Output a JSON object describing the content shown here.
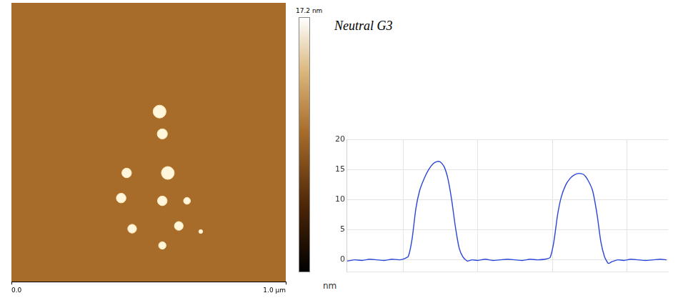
{
  "chart_data": [
    {
      "type": "scatter",
      "x": [
        0.54,
        0.55,
        0.42,
        0.57,
        0.4,
        0.55,
        0.64,
        0.44,
        0.61,
        0.69,
        0.55
      ],
      "values": [
        0.61,
        0.53,
        0.39,
        0.39,
        0.3,
        0.29,
        0.29,
        0.19,
        0.2,
        0.18,
        0.13
      ],
      "diameters": [
        0.047,
        0.037,
        0.035,
        0.047,
        0.035,
        0.035,
        0.025,
        0.032,
        0.032,
        0.014,
        0.027
      ],
      "color": "#fff6dc",
      "xlim": [
        0,
        1
      ],
      "ylim": [
        0,
        1
      ],
      "xticks": [
        {
          "value": 0,
          "label": "0.0"
        },
        {
          "value": 1,
          "label": "1.0 µm"
        }
      ],
      "tick_labels": "x",
      "grid": false,
      "colorbar": {
        "range": [
          0,
          17.2
        ],
        "ticks": [
          {
            "value": 17.2,
            "label": "17.2 nm"
          }
        ]
      }
    },
    {
      "type": "line",
      "title": "Neutral G3",
      "ylabel": "nm",
      "x": [
        0.25,
        0.35,
        0.45,
        0.55,
        0.65,
        0.75,
        0.85,
        0.95,
        1.02,
        1.07,
        1.12,
        1.17,
        1.22,
        1.28,
        1.34,
        1.4,
        1.46,
        1.5,
        1.55,
        1.6,
        1.65,
        1.7,
        1.75,
        1.8,
        1.86,
        1.92,
        2.0,
        2.1,
        2.2,
        2.3,
        2.4,
        2.5,
        2.6,
        2.7,
        2.8,
        2.9,
        2.97,
        3.02,
        3.07,
        3.12,
        3.18,
        3.24,
        3.3,
        3.36,
        3.42,
        3.48,
        3.54,
        3.6,
        3.65,
        3.7,
        3.75,
        3.8,
        3.88,
        3.96,
        4.05,
        4.15,
        4.25,
        4.35,
        4.45,
        4.53
      ],
      "values": [
        -0.2,
        0.0,
        -0.1,
        0.1,
        0.0,
        -0.1,
        0.1,
        0.0,
        0.2,
        0.6,
        3.5,
        8.5,
        11.5,
        13.5,
        15.0,
        16.0,
        16.4,
        16.3,
        15.5,
        13.5,
        10.0,
        5.5,
        2.0,
        0.5,
        -0.2,
        0.0,
        -0.1,
        0.1,
        -0.1,
        0.0,
        0.1,
        0.0,
        -0.1,
        0.1,
        0.0,
        0.1,
        0.4,
        3.0,
        7.5,
        10.5,
        12.5,
        13.6,
        14.2,
        14.4,
        14.2,
        13.2,
        11.5,
        7.5,
        3.0,
        0.5,
        -0.6,
        -0.3,
        0.0,
        -0.1,
        0.1,
        0.0,
        -0.1,
        0.0,
        0.1,
        0.0
      ],
      "color": "#2a45d8",
      "xlim": [
        0.25,
        4.55
      ],
      "xticks": [
        1,
        2,
        3,
        4
      ],
      "ylim": [
        -2,
        20
      ],
      "yticks": [
        0,
        5,
        10,
        15,
        20
      ],
      "grid": true,
      "tick_labels": "y"
    }
  ]
}
